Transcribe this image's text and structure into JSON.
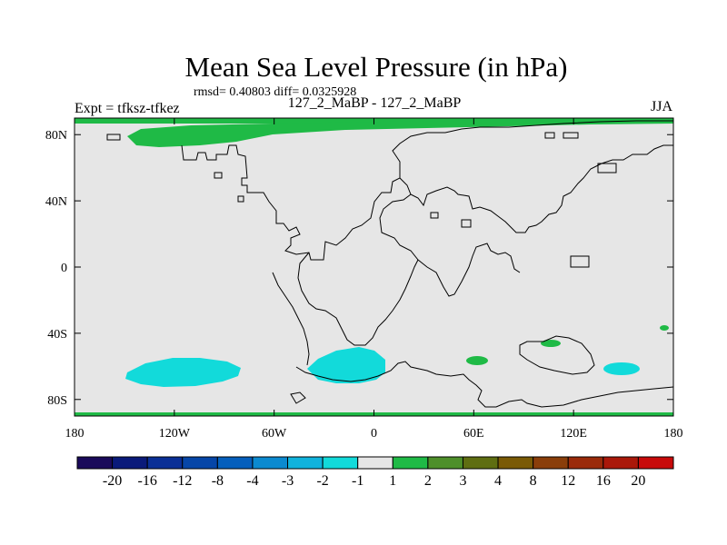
{
  "title": "Mean Sea Level Pressure (in hPa)",
  "stats": "rmsd= 0.40803 diff= 0.0325928",
  "left_label": "Expt = tfksz-tfkez",
  "center_label": "127_2_MaBP - 127_2_MaBP",
  "right_label": "JJA",
  "colors": {
    "land_fill": "#e6e6e6",
    "positive_anomaly": "#1fba46",
    "negative_anomaly": "#12dada",
    "outline": "#000000"
  },
  "chart_data": {
    "type": "heatmap",
    "title": "Mean Sea Level Pressure (in hPa)",
    "variable": "Mean Sea Level Pressure",
    "units": "hPa",
    "season": "JJA",
    "x_ticks": [
      "180",
      "120W",
      "60W",
      "0",
      "60E",
      "120E",
      "180"
    ],
    "x_values": [
      -180,
      -120,
      -60,
      0,
      60,
      120,
      180
    ],
    "y_ticks": [
      "80N",
      "40N",
      "0",
      "40S",
      "80S"
    ],
    "y_values": [
      80,
      40,
      0,
      -40,
      -80
    ],
    "xlim": [
      -180,
      180
    ],
    "ylim": [
      -90,
      90
    ],
    "colorbar": {
      "labels": [
        "-20",
        "-16",
        "-12",
        "-8",
        "-4",
        "-3",
        "-2",
        "-1",
        "1",
        "2",
        "3",
        "4",
        "8",
        "12",
        "16",
        "20"
      ],
      "colors": [
        "#1a0a5a",
        "#0a1a7a",
        "#0a2f96",
        "#0646a8",
        "#055fbc",
        "#0b8ad0",
        "#10b3dc",
        "#12dada",
        "#e6e6e6",
        "#1fba46",
        "#4e8f2a",
        "#5f6e12",
        "#7a5a06",
        "#8a3e0a",
        "#9a2a0a",
        "#aa180a",
        "#c80a0a"
      ]
    }
  }
}
